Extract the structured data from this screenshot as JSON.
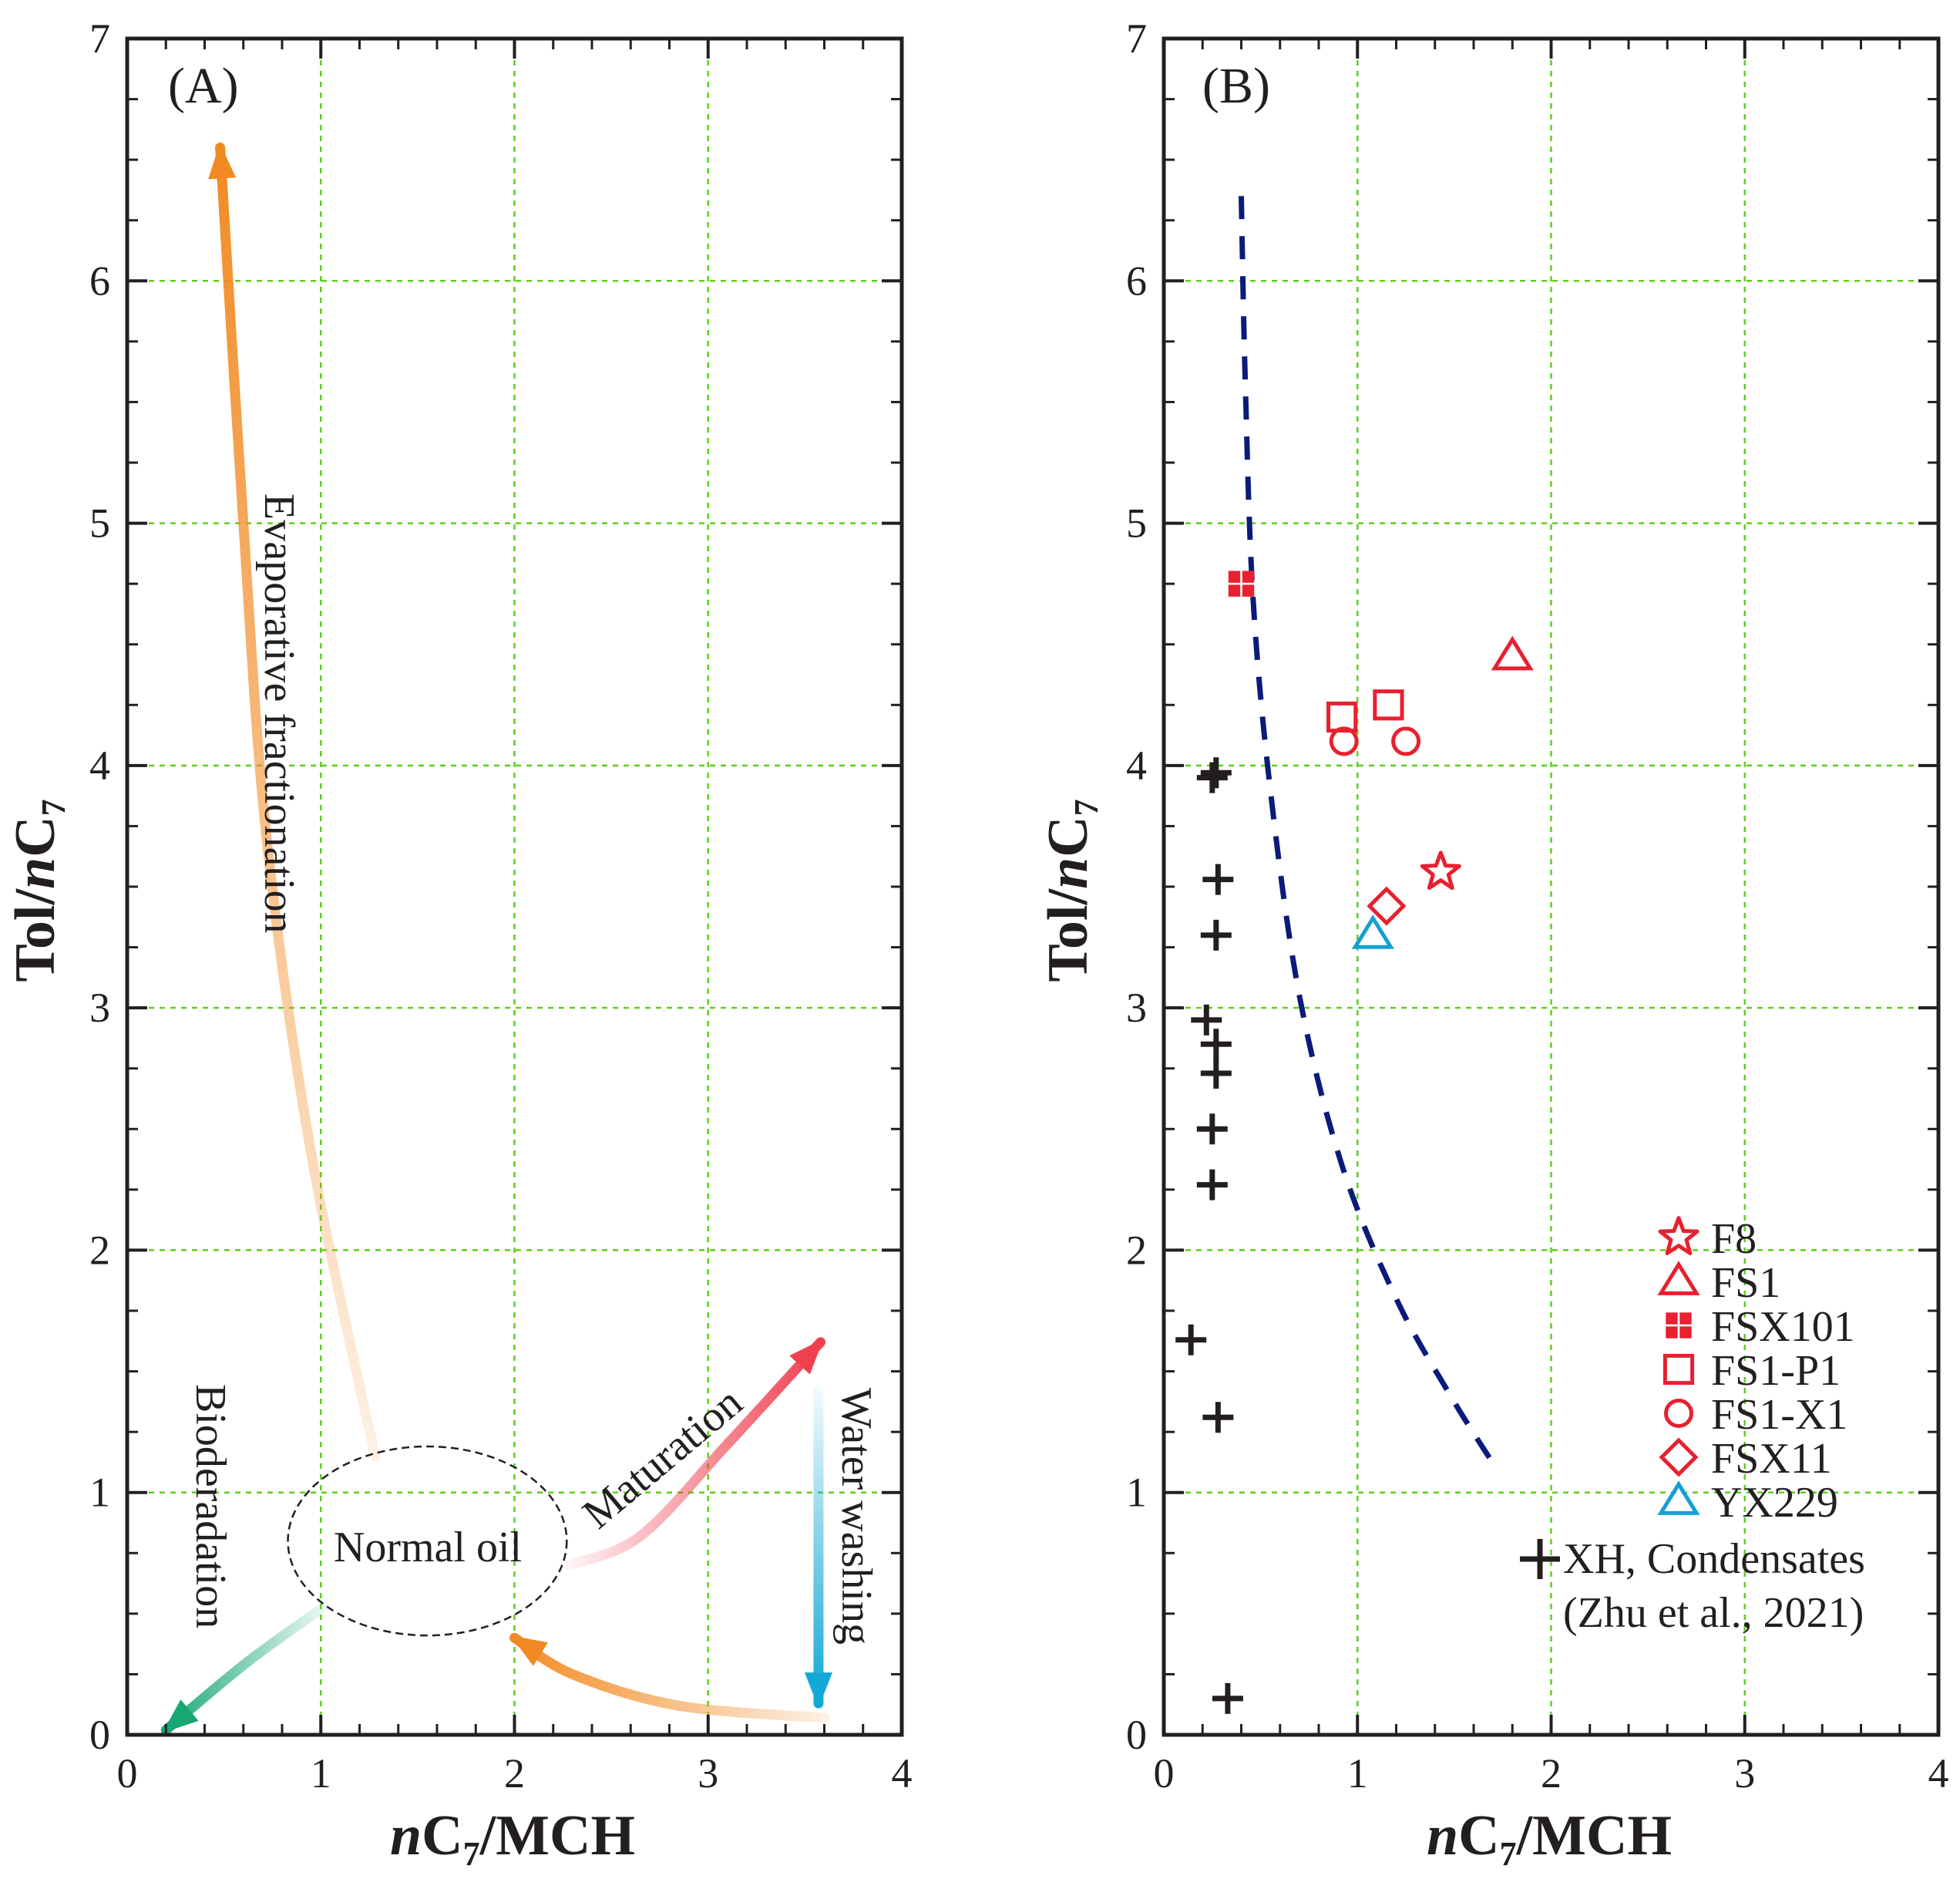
{
  "chart_data": [
    {
      "type": "scatter",
      "panel": "A",
      "panel_label": "(A)",
      "xlabel": {
        "italic": "n",
        "main": "C",
        "sub": "7",
        "rest": "/MCH"
      },
      "ylabel": {
        "lead": "Tol/",
        "italic": "n",
        "main": "C",
        "sub": "7"
      },
      "xlim": [
        0,
        4
      ],
      "ylim": [
        0,
        7
      ],
      "x_ticks": [
        "0",
        "1",
        "2",
        "3",
        "4"
      ],
      "y_ticks": [
        "0",
        "1",
        "2",
        "3",
        "4",
        "5",
        "6",
        "7"
      ],
      "grid": true,
      "ellipse": {
        "label": "Normal oil",
        "cx": 1.55,
        "cy": 0.8,
        "rx": 0.72,
        "ry": 0.39
      },
      "annotations": {
        "evaporative": "Evaporative fractionation",
        "maturation": "Maturation",
        "water_washing": "Water washing",
        "biodegradation": "Bioderadation"
      },
      "arrows": [
        {
          "name": "evaporative-fractionation",
          "color": "#f28a23",
          "points": [
            [
              1.28,
              1.15
            ],
            [
              0.95,
              2.4
            ],
            [
              0.72,
              3.7
            ],
            [
              0.6,
              5.0
            ],
            [
              0.48,
              6.55
            ]
          ]
        },
        {
          "name": "maturation",
          "color": "#ef4050",
          "points": [
            [
              2.28,
              0.7
            ],
            [
              2.65,
              0.82
            ],
            [
              3.1,
              1.2
            ],
            [
              3.58,
              1.62
            ]
          ]
        },
        {
          "name": "water-washing",
          "color": "#14a9d5",
          "points": [
            [
              3.57,
              1.42
            ],
            [
              3.57,
              0.13
            ]
          ]
        },
        {
          "name": "biodegradation",
          "color": "#16a773",
          "points": [
            [
              1.02,
              0.53
            ],
            [
              0.62,
              0.3
            ],
            [
              0.2,
              0.02
            ]
          ]
        },
        {
          "name": "reverse-curve",
          "color": "#f28a23",
          "points": [
            [
              3.6,
              0.07
            ],
            [
              2.85,
              0.12
            ],
            [
              2.3,
              0.25
            ],
            [
              2.0,
              0.4
            ]
          ]
        }
      ]
    },
    {
      "type": "scatter",
      "panel": "B",
      "panel_label": "(B)",
      "xlabel": {
        "italic": "n",
        "main": "C",
        "sub": "7",
        "rest": "/MCH"
      },
      "ylabel": {
        "lead": "Tol/",
        "italic": "n",
        "main": "C",
        "sub": "7"
      },
      "xlim": [
        0,
        4
      ],
      "ylim": [
        0,
        7
      ],
      "x_ticks": [
        "0",
        "1",
        "2",
        "3",
        "4"
      ],
      "y_ticks": [
        "0",
        "1",
        "2",
        "3",
        "4",
        "5",
        "6",
        "7"
      ],
      "grid": true,
      "trend_line": {
        "color": "#0a1b7a",
        "style": "dashed",
        "points": [
          [
            0.4,
            6.35
          ],
          [
            0.42,
            5.6
          ],
          [
            0.46,
            4.7
          ],
          [
            0.55,
            3.9
          ],
          [
            0.7,
            3.05
          ],
          [
            0.92,
            2.35
          ],
          [
            1.2,
            1.8
          ],
          [
            1.48,
            1.4
          ],
          [
            1.7,
            1.12
          ]
        ]
      },
      "series": [
        {
          "name": "F8",
          "marker": "star",
          "color": "#e8202f",
          "points": [
            [
              1.43,
              3.56
            ]
          ]
        },
        {
          "name": "FS1",
          "marker": "triangle",
          "color": "#e8202f",
          "points": [
            [
              1.8,
              4.45
            ]
          ]
        },
        {
          "name": "FSX101",
          "marker": "filled-square-cross",
          "color": "#e8202f",
          "points": [
            [
              0.4,
              4.75
            ]
          ]
        },
        {
          "name": "FS1-P1",
          "marker": "square",
          "color": "#e8202f",
          "points": [
            [
              0.92,
              4.2
            ],
            [
              1.16,
              4.25
            ]
          ]
        },
        {
          "name": "FS1-X1",
          "marker": "circle",
          "color": "#e8202f",
          "points": [
            [
              0.93,
              4.1
            ],
            [
              1.25,
              4.1
            ]
          ]
        },
        {
          "name": "FSX11",
          "marker": "diamond",
          "color": "#e8202f",
          "points": [
            [
              1.15,
              3.42
            ]
          ]
        },
        {
          "name": "YX229",
          "marker": "triangle",
          "color": "#13a0d3",
          "points": [
            [
              1.08,
              3.3
            ]
          ]
        },
        {
          "name": "XH, Condensates",
          "name_line2": "(Zhu et al., 2021)",
          "marker": "plus",
          "color": "#231f20",
          "points": [
            [
              0.25,
              3.95
            ],
            [
              0.27,
              3.97
            ],
            [
              0.28,
              3.53
            ],
            [
              0.27,
              3.3
            ],
            [
              0.22,
              2.95
            ],
            [
              0.27,
              2.85
            ],
            [
              0.27,
              2.73
            ],
            [
              0.25,
              2.5
            ],
            [
              0.25,
              2.27
            ],
            [
              0.14,
              1.63
            ],
            [
              0.28,
              1.31
            ],
            [
              0.33,
              0.15
            ]
          ]
        }
      ],
      "legend": {
        "placement": "bottom-right"
      }
    }
  ]
}
